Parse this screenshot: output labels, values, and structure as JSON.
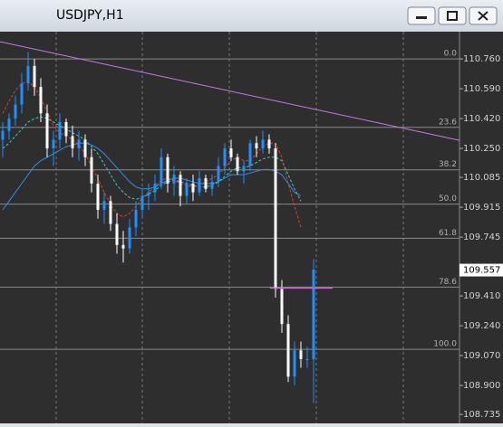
{
  "window": {
    "title": "USDJPY,H1"
  },
  "chart_data": {
    "type": "candlestick",
    "up_color": "#1e90ff",
    "down_color": "#ffffff",
    "ylim": [
      108.684,
      110.915
    ],
    "yticks": [
      {
        "value": 110.76,
        "label": "110.760"
      },
      {
        "value": 110.59,
        "label": "110.590"
      },
      {
        "value": 110.42,
        "label": "110.420"
      },
      {
        "value": 110.25,
        "label": "110.250"
      },
      {
        "value": 110.085,
        "label": "110.085"
      },
      {
        "value": 109.915,
        "label": "109.915"
      },
      {
        "value": 109.745,
        "label": "109.745"
      },
      {
        "value": 109.41,
        "label": "109.410"
      },
      {
        "value": 109.24,
        "label": "109.240"
      },
      {
        "value": 109.07,
        "label": "109.070"
      },
      {
        "value": 108.9,
        "label": "108.900"
      },
      {
        "value": 108.735,
        "label": "108.735"
      }
    ],
    "current_price": {
      "value": 109.557,
      "label": "109.557"
    },
    "open": [
      110.3,
      110.35,
      110.42,
      110.5,
      110.62,
      110.72,
      110.6,
      110.45,
      110.25,
      110.3,
      110.4,
      110.32,
      110.25,
      110.3,
      110.2,
      110.05,
      109.9,
      109.95,
      109.82,
      109.7,
      109.68,
      109.8,
      109.9,
      109.98,
      110.0,
      110.05,
      110.2,
      110.05,
      110.1,
      109.98,
      110.05,
      110.0,
      110.08,
      110.02,
      110.06,
      110.15,
      110.25,
      110.2,
      110.12,
      110.15,
      110.28,
      110.25,
      110.3,
      110.25,
      109.45,
      109.25,
      108.95,
      109.1,
      109.05,
      109.05
    ],
    "high": [
      110.4,
      110.45,
      110.55,
      110.68,
      110.8,
      110.76,
      110.65,
      110.5,
      110.35,
      110.45,
      110.42,
      110.38,
      110.35,
      110.33,
      110.25,
      110.1,
      110.0,
      109.98,
      109.88,
      109.78,
      109.85,
      109.95,
      110.02,
      110.05,
      110.1,
      110.25,
      110.22,
      110.15,
      110.12,
      110.08,
      110.1,
      110.12,
      110.1,
      110.1,
      110.2,
      110.28,
      110.3,
      110.22,
      110.18,
      110.3,
      110.32,
      110.35,
      110.33,
      110.28,
      109.5,
      109.3,
      109.15,
      109.15,
      109.12,
      109.62
    ],
    "low": [
      110.2,
      110.3,
      110.38,
      110.45,
      110.58,
      110.55,
      110.4,
      110.2,
      110.15,
      110.25,
      110.28,
      110.2,
      110.18,
      110.15,
      110.0,
      109.85,
      109.82,
      109.78,
      109.65,
      109.6,
      109.65,
      109.75,
      109.86,
      109.9,
      109.95,
      110.02,
      110.0,
      109.98,
      109.92,
      109.93,
      109.95,
      109.98,
      110.0,
      109.98,
      110.03,
      110.1,
      110.18,
      110.1,
      110.05,
      110.12,
      110.2,
      110.22,
      110.22,
      109.4,
      109.2,
      108.92,
      108.9,
      109.0,
      109.0,
      108.8
    ],
    "close": [
      110.35,
      110.42,
      110.5,
      110.62,
      110.72,
      110.6,
      110.45,
      110.25,
      110.3,
      110.4,
      110.32,
      110.25,
      110.3,
      110.2,
      110.05,
      109.9,
      109.95,
      109.82,
      109.7,
      109.68,
      109.8,
      109.9,
      109.98,
      110.0,
      110.05,
      110.2,
      110.05,
      110.1,
      109.98,
      110.05,
      110.0,
      110.08,
      110.02,
      110.06,
      110.15,
      110.25,
      110.2,
      110.12,
      110.15,
      110.28,
      110.25,
      110.3,
      110.25,
      109.45,
      109.25,
      108.95,
      109.1,
      109.05,
      109.05,
      109.56
    ],
    "series": [
      {
        "color": "#2f8fe8",
        "dash": false,
        "values": [
          109.9,
          109.95,
          110.0,
          110.05,
          110.1,
          110.15,
          110.18,
          110.2,
          110.22,
          110.24,
          110.26,
          110.27,
          110.28,
          110.28,
          110.27,
          110.25,
          110.22,
          110.18,
          110.14,
          110.1,
          110.06,
          110.03,
          110.02,
          110.02,
          110.03,
          110.05,
          110.07,
          110.08,
          110.08,
          110.07,
          110.06,
          110.05,
          110.05,
          110.05,
          110.06,
          110.08,
          110.1,
          110.1,
          110.1,
          110.11,
          110.12,
          110.13,
          110.13,
          110.12,
          110.1,
          110.05,
          110.0,
          109.98,
          null,
          null
        ]
      },
      {
        "color": "#3ec9c0",
        "dash": true,
        "values": [
          110.25,
          110.28,
          110.32,
          110.36,
          110.4,
          110.42,
          110.43,
          110.42,
          110.4,
          110.38,
          110.36,
          110.34,
          110.32,
          110.3,
          110.26,
          110.22,
          110.16,
          110.1,
          110.04,
          110.0,
          109.97,
          109.96,
          109.97,
          109.99,
          110.01,
          110.04,
          110.06,
          110.07,
          110.06,
          110.05,
          110.04,
          110.03,
          110.03,
          110.04,
          110.06,
          110.09,
          110.12,
          110.14,
          110.14,
          110.15,
          110.17,
          110.19,
          110.2,
          110.2,
          110.18,
          110.1,
          110.02,
          109.95,
          null,
          null
        ]
      },
      {
        "color": "#e0402a",
        "dash": true,
        "values": [
          110.45,
          110.52,
          110.58,
          110.62,
          110.63,
          110.6,
          110.54,
          110.46,
          110.38,
          110.34,
          110.32,
          110.3,
          110.27,
          110.22,
          110.15,
          110.08,
          110.0,
          109.93,
          109.88,
          109.86,
          109.88,
          109.92,
          109.97,
          110.0,
          110.03,
          110.07,
          110.08,
          110.07,
          110.05,
          110.04,
          110.03,
          110.04,
          110.06,
          110.08,
          110.1,
          110.14,
          110.18,
          110.2,
          110.18,
          110.18,
          110.22,
          110.26,
          110.28,
          110.28,
          110.2,
          110.05,
          109.92,
          109.8,
          null,
          null
        ]
      }
    ],
    "trendline": {
      "color": "#c879e8",
      "x": [
        -0.43,
        72
      ],
      "y": [
        110.858,
        110.296
      ]
    },
    "hline": {
      "color": "#d060d0",
      "x": [
        42.1,
        52
      ],
      "y": 109.455
    },
    "fibonacci": [
      {
        "label": "0.0",
        "price": 110.76
      },
      {
        "label": "23.6",
        "price": 110.37
      },
      {
        "label": "38.2",
        "price": 110.128
      },
      {
        "label": "50.0",
        "price": 109.933
      },
      {
        "label": "61.8",
        "price": 109.738
      },
      {
        "label": "78.6",
        "price": 109.46
      },
      {
        "label": "100.0",
        "price": 109.106
      }
    ]
  }
}
